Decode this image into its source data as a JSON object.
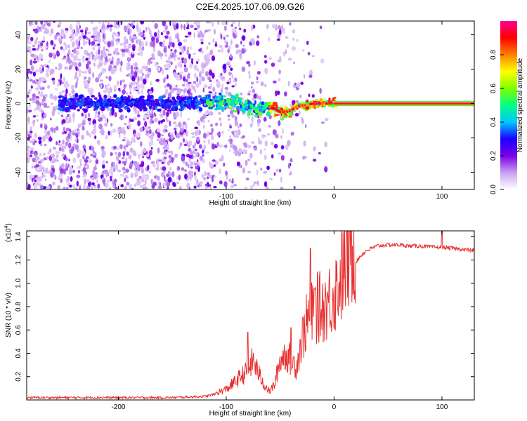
{
  "title": "C2E4.2025.107.06.09.G26",
  "chart_data": [
    {
      "type": "heatmap",
      "title": "C2E4.2025.107.06.09.G26",
      "xlabel": "Height of straight line (km)",
      "ylabel": "Frequency (Hz)",
      "xlim": [
        -285,
        130
      ],
      "ylim": [
        -50,
        48
      ],
      "xticks": [
        -200,
        -100,
        0,
        100
      ],
      "yticks": [
        -40,
        -20,
        0,
        20,
        40
      ],
      "ridge": {
        "x": [
          -285,
          -250,
          -200,
          -150,
          -110,
          -100,
          -90,
          -80,
          -70,
          -60,
          -55,
          -50,
          -45,
          -40,
          -35,
          -30,
          -25,
          -20,
          -15,
          -10,
          -5,
          0,
          130
        ],
        "freq": [
          0,
          0,
          0,
          0,
          1,
          2,
          0,
          -2,
          -3,
          -2,
          -3,
          -5,
          -5,
          -4,
          -2,
          -1,
          -1,
          0,
          0,
          0,
          0,
          1,
          0
        ]
      },
      "steady_band": {
        "x_start": 0,
        "x_end": 130,
        "freq": 0,
        "half_width": 1.5
      },
      "colorbar": {
        "label": "Normalized spectral amplitude",
        "range": [
          0,
          1
        ],
        "ticks": [
          "0.0",
          "0.2",
          "0.4",
          "0.6",
          "0.8"
        ],
        "tick_values": [
          0,
          0.2,
          0.4,
          0.6,
          0.8
        ],
        "colormap": [
          "#ffffff",
          "#c8a0f0",
          "#7a00e6",
          "#1a00ff",
          "#00c8ff",
          "#00ff80",
          "#80ff00",
          "#ffff00",
          "#ff8000",
          "#ff0000",
          "#ff0090"
        ]
      }
    },
    {
      "type": "line",
      "xlabel": "Height of straight line (km)",
      "ylabel": "SNR (10 * v/v)",
      "scale_label": "(x10",
      "scale_exp": "4",
      "scale_close": ")",
      "xlim": [
        -285,
        130
      ],
      "ylim": [
        0,
        1.45
      ],
      "xticks": [
        -200,
        -100,
        0,
        100
      ],
      "yticks": [
        0.2,
        0.4,
        0.6,
        0.8,
        1.0,
        1.2,
        1.4
      ],
      "ytick_labels": [
        "0.2",
        "0.4",
        "0.6",
        "0.8",
        "1.0",
        "1.2",
        "1.4"
      ],
      "color": "#e83030",
      "series": {
        "name": "SNR",
        "x": [
          -285,
          -250,
          -200,
          -150,
          -120,
          -110,
          -100,
          -90,
          -80,
          -75,
          -70,
          -65,
          -60,
          -55,
          -50,
          -45,
          -40,
          -35,
          -30,
          -25,
          -20,
          -15,
          -10,
          -5,
          0,
          5,
          10,
          15,
          20,
          25,
          30,
          40,
          50,
          60,
          70,
          80,
          90,
          100,
          110,
          120,
          130
        ],
        "y": [
          0.02,
          0.02,
          0.02,
          0.02,
          0.03,
          0.05,
          0.08,
          0.15,
          0.22,
          0.3,
          0.2,
          0.12,
          0.06,
          0.12,
          0.3,
          0.35,
          0.3,
          0.25,
          0.45,
          0.6,
          0.65,
          0.7,
          0.7,
          0.75,
          0.8,
          0.9,
          1.0,
          1.1,
          1.18,
          1.24,
          1.28,
          1.32,
          1.33,
          1.33,
          1.32,
          1.32,
          1.31,
          1.31,
          1.3,
          1.29,
          1.28
        ]
      },
      "spikes": [
        {
          "x": -80,
          "y": 0.58
        },
        {
          "x": -40,
          "y": 0.62
        },
        {
          "x": -22,
          "y": 1.3
        },
        {
          "x": -18,
          "y": 0.95
        },
        {
          "x": 100,
          "y": 1.47
        }
      ]
    }
  ]
}
